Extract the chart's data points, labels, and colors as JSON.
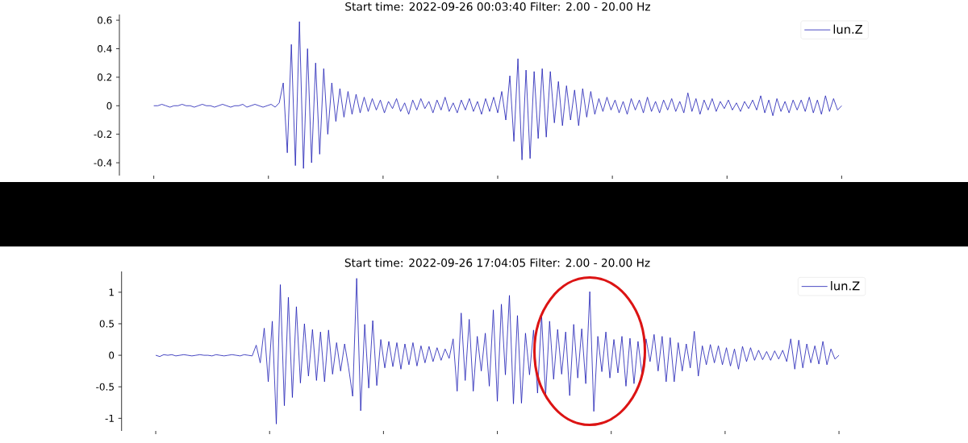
{
  "chart_data": [
    {
      "type": "line",
      "title": "Start time: 2022-09-26 00:03:40  Filter: 2.00 - 20.00 Hz",
      "categories": [
        null,
        null,
        null,
        null,
        null,
        null,
        null,
        null,
        null,
        null,
        null,
        null,
        null,
        null,
        null,
        null,
        null,
        null,
        null,
        null,
        null,
        null,
        null,
        null,
        null,
        null,
        null,
        null,
        null,
        null,
        null,
        null,
        null,
        null,
        null,
        null,
        null,
        null,
        null,
        null,
        null,
        null,
        null,
        null,
        null,
        null,
        null,
        null,
        null,
        null,
        null,
        null,
        null,
        null,
        null,
        null,
        null,
        null,
        null,
        null,
        null,
        null,
        null,
        null,
        null,
        null,
        null,
        null,
        null,
        null,
        null,
        null,
        null,
        null,
        null,
        null,
        null,
        null,
        null,
        null,
        null,
        null,
        null,
        null,
        null,
        null,
        null,
        null,
        null,
        null,
        null,
        null,
        null,
        null,
        null,
        null,
        null,
        null,
        null,
        null,
        null,
        null,
        null,
        null,
        null,
        null,
        null,
        null,
        null,
        null,
        null,
        null,
        null,
        null,
        null,
        null,
        null,
        null,
        null,
        null,
        null,
        null,
        null,
        null,
        null,
        null,
        null,
        null,
        null,
        null,
        null,
        null,
        null,
        null,
        null,
        null,
        null,
        null,
        null,
        null,
        null,
        null,
        null,
        null,
        null,
        null,
        null,
        null,
        null,
        null,
        null,
        null,
        null,
        null,
        null,
        null,
        null,
        null,
        null,
        null,
        null,
        null,
        null,
        null,
        null,
        null,
        null,
        null,
        null,
        null,
        null
      ],
      "series": [
        {
          "name": "lun.Z",
          "color": "#1c1cb4",
          "values": [
            0,
            0,
            0.01,
            0,
            -0.01,
            0,
            0,
            0.01,
            0,
            0,
            -0.01,
            0,
            0.01,
            0,
            0,
            -0.01,
            0,
            0.01,
            0,
            -0.01,
            0,
            0,
            0.01,
            -0.01,
            0,
            0.01,
            0,
            -0.01,
            0,
            0.01,
            -0.01,
            0.02,
            0.16,
            -0.33,
            0.43,
            -0.42,
            0.59,
            -0.44,
            0.4,
            -0.4,
            0.3,
            -0.34,
            0.26,
            -0.2,
            0.16,
            -0.11,
            0.12,
            -0.08,
            0.1,
            -0.06,
            0.08,
            -0.05,
            0.06,
            -0.04,
            0.05,
            -0.03,
            0.04,
            -0.05,
            0.03,
            -0.02,
            0.05,
            -0.04,
            0.02,
            -0.06,
            0.04,
            -0.03,
            0.05,
            -0.02,
            0.03,
            -0.05,
            0.04,
            -0.03,
            0.06,
            -0.04,
            0.02,
            -0.05,
            0.04,
            -0.03,
            0.05,
            -0.04,
            0.03,
            -0.06,
            0.05,
            -0.04,
            0.06,
            -0.05,
            0.1,
            -0.1,
            0.21,
            -0.25,
            0.33,
            -0.38,
            0.25,
            -0.37,
            0.24,
            -0.23,
            0.26,
            -0.22,
            0.24,
            -0.12,
            0.17,
            -0.14,
            0.14,
            -0.1,
            0.11,
            -0.14,
            0.12,
            -0.08,
            0.1,
            -0.06,
            0.05,
            -0.04,
            0.06,
            -0.03,
            0.04,
            -0.05,
            0.03,
            -0.06,
            0.05,
            -0.03,
            0.04,
            -0.05,
            0.06,
            -0.04,
            0.03,
            -0.05,
            0.04,
            -0.03,
            0.05,
            -0.04,
            0.03,
            -0.05,
            0.09,
            -0.04,
            0.05,
            -0.06,
            0.04,
            -0.03,
            0.05,
            -0.04,
            0.03,
            -0.02,
            0.04,
            -0.03,
            0.02,
            -0.04,
            0.03,
            -0.02,
            0.04,
            -0.03,
            0.07,
            -0.05,
            0.04,
            -0.07,
            0.05,
            -0.04,
            0.03,
            -0.05,
            0.04,
            -0.03,
            0.04,
            -0.04,
            0.06,
            -0.05,
            0.04,
            -0.06,
            0.07,
            -0.04,
            0.05,
            -0.03,
            0
          ]
        }
      ],
      "ylim": [
        -0.49,
        0.64
      ],
      "yticks": [
        -0.4,
        -0.2,
        0,
        0.2,
        0.4,
        0.6
      ],
      "legend": "top right",
      "tick_labels": "y"
    },
    {
      "type": "line",
      "title": "Start time: 2022-09-26 17:04:05  Filter: 2.00 - 20.00 Hz",
      "categories": [
        null,
        null,
        null,
        null,
        null,
        null,
        null,
        null,
        null,
        null,
        null,
        null,
        null,
        null,
        null,
        null,
        null,
        null,
        null,
        null,
        null,
        null,
        null,
        null,
        null,
        null,
        null,
        null,
        null,
        null,
        null,
        null,
        null,
        null,
        null,
        null,
        null,
        null,
        null,
        null,
        null,
        null,
        null,
        null,
        null,
        null,
        null,
        null,
        null,
        null,
        null,
        null,
        null,
        null,
        null,
        null,
        null,
        null,
        null,
        null,
        null,
        null,
        null,
        null,
        null,
        null,
        null,
        null,
        null,
        null,
        null,
        null,
        null,
        null,
        null,
        null,
        null,
        null,
        null,
        null,
        null,
        null,
        null,
        null,
        null,
        null,
        null,
        null,
        null,
        null,
        null,
        null,
        null,
        null,
        null,
        null,
        null,
        null,
        null,
        null,
        null,
        null,
        null,
        null,
        null,
        null,
        null,
        null,
        null,
        null,
        null,
        null,
        null,
        null,
        null,
        null,
        null,
        null,
        null,
        null,
        null,
        null,
        null,
        null,
        null,
        null,
        null,
        null,
        null,
        null,
        null,
        null,
        null,
        null,
        null,
        null,
        null,
        null,
        null,
        null,
        null,
        null,
        null,
        null,
        null,
        null,
        null,
        null,
        null,
        null,
        null,
        null,
        null,
        null,
        null,
        null,
        null,
        null,
        null,
        null,
        null,
        null,
        null,
        null,
        null,
        null,
        null,
        null,
        null,
        null,
        null
      ],
      "series": [
        {
          "name": "lun.Z",
          "color": "#1c1cb4",
          "values": [
            0,
            -0.02,
            0.01,
            0,
            0.01,
            -0.01,
            0,
            0.01,
            0,
            -0.01,
            0,
            0.01,
            0,
            0,
            -0.01,
            0.01,
            0,
            -0.01,
            0,
            0.01,
            0,
            -0.01,
            0.01,
            0,
            -0.01,
            0.16,
            -0.12,
            0.43,
            -0.42,
            0.54,
            -1.09,
            1.12,
            -0.8,
            0.92,
            -0.67,
            0.77,
            -0.44,
            0.5,
            -0.33,
            0.41,
            -0.4,
            0.37,
            -0.42,
            0.4,
            -0.3,
            0.2,
            -0.25,
            0.18,
            -0.2,
            -0.65,
            1.22,
            -0.88,
            0.49,
            -0.52,
            0.55,
            -0.48,
            0.25,
            -0.2,
            0.22,
            -0.18,
            0.2,
            -0.22,
            0.18,
            -0.15,
            0.2,
            -0.17,
            0.15,
            -0.12,
            0.14,
            -0.1,
            0.12,
            -0.08,
            0.1,
            -0.05,
            0.26,
            -0.57,
            0.67,
            -0.4,
            0.57,
            -0.57,
            0.3,
            -0.25,
            0.35,
            -0.49,
            0.72,
            -0.73,
            0.81,
            -0.31,
            0.95,
            -0.77,
            0.63,
            -0.76,
            0.35,
            -0.31,
            0.4,
            -0.6,
            0.63,
            -0.64,
            0.54,
            -0.38,
            0.41,
            -0.3,
            0.37,
            -0.64,
            0.49,
            -0.36,
            0.42,
            -0.45,
            1.01,
            -0.89,
            0.3,
            -0.26,
            0.37,
            -0.36,
            0.25,
            -0.28,
            0.3,
            -0.49,
            0.27,
            -0.45,
            0.22,
            -0.3,
            0.26,
            -0.1,
            0.33,
            -0.25,
            0.3,
            -0.42,
            0.28,
            -0.42,
            0.2,
            -0.25,
            0.18,
            -0.2,
            0.38,
            -0.33,
            0.15,
            -0.15,
            0.17,
            -0.12,
            0.15,
            -0.15,
            0.12,
            -0.17,
            0.1,
            -0.22,
            0.14,
            -0.1,
            0.12,
            -0.08,
            0.08,
            -0.07,
            0.06,
            -0.08,
            0.07,
            -0.06,
            0.08,
            -0.1,
            0.26,
            -0.22,
            0.24,
            -0.2,
            0.18,
            -0.12,
            0.15,
            -0.14,
            0.22,
            -0.15,
            0.1,
            -0.06,
            0
          ]
        }
      ],
      "ylim": [
        -1.2,
        1.33
      ],
      "yticks": [
        -1,
        -0.5,
        0,
        0.5,
        1
      ],
      "legend": "top right",
      "tick_labels": "y"
    }
  ]
}
